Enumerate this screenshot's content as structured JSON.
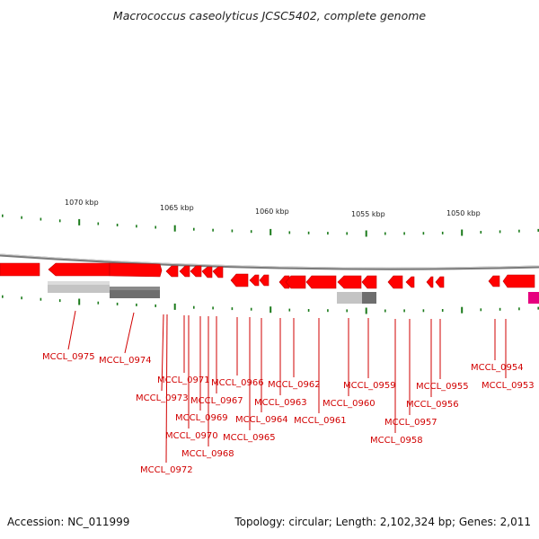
{
  "title": "Macrococcus caseolyticus JCSC5402, complete genome",
  "footer": {
    "accession": "Accession: NC_011999",
    "topology": "Topology: circular; Length: 2,102,324 bp; Genes: 2,011"
  },
  "scale_labels": [
    "1070 kbp",
    "1065 kbp",
    "1060 kbp",
    "1055 kbp",
    "1050 kbp"
  ],
  "colors": {
    "gene": "#ff0000",
    "gene_pink": "#e6007e",
    "tick": "#1a7a1a",
    "label": "#d10000",
    "backbone": "#888888"
  },
  "genes": [
    "MCCL_0975",
    "MCCL_0974",
    "MCCL_0973",
    "MCCL_0972",
    "MCCL_0971",
    "MCCL_0970",
    "MCCL_0969",
    "MCCL_0968",
    "MCCL_0967",
    "MCCL_0966",
    "MCCL_0965",
    "MCCL_0964",
    "MCCL_0963",
    "MCCL_0962",
    "MCCL_0961",
    "MCCL_0960",
    "MCCL_0959",
    "MCCL_0958",
    "MCCL_0957",
    "MCCL_0956",
    "MCCL_0955",
    "MCCL_0954",
    "MCCL_0953"
  ]
}
